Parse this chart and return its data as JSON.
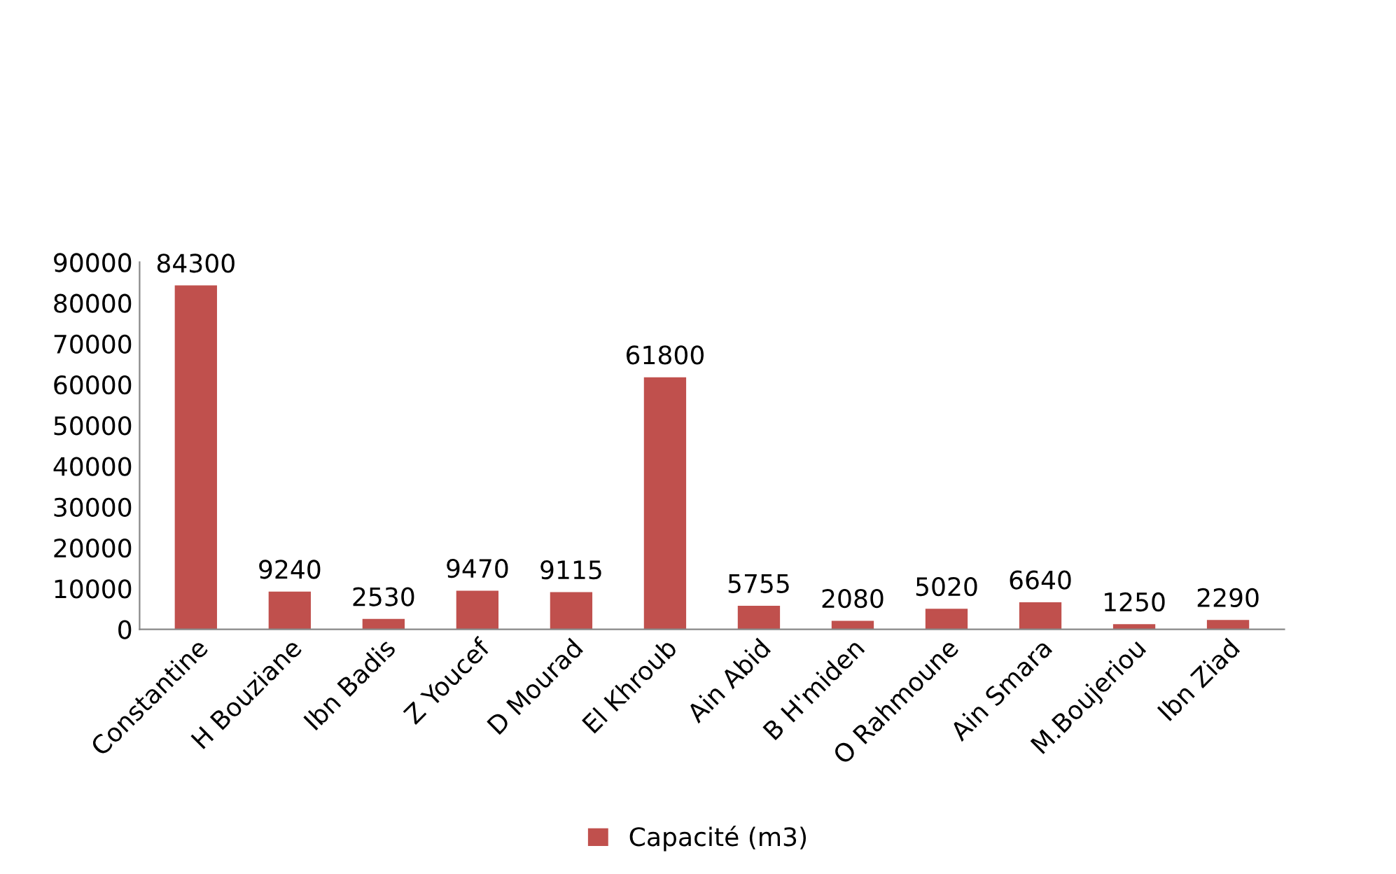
{
  "chart_data": {
    "type": "bar",
    "categories": [
      "Constantine",
      "H Bouziane",
      "Ibn Badis",
      "Z Youcef",
      "D Mourad",
      "El Khroub",
      "Ain Abid",
      "B H'miden",
      "O Rahmoune",
      "Ain Smara",
      "M.Boujeriou",
      "Ibn Ziad"
    ],
    "series": [
      {
        "name": "Capacité (m3)",
        "color": "#c0504d",
        "values": [
          84300,
          9240,
          2530,
          9470,
          9115,
          61800,
          5755,
          2080,
          5020,
          6640,
          1250,
          2290
        ]
      }
    ],
    "ylim": [
      0,
      90000
    ],
    "yticks": [
      0,
      10000,
      20000,
      30000,
      40000,
      50000,
      60000,
      70000,
      80000,
      90000
    ],
    "data_labels": true,
    "grid": false,
    "legend": "bottom"
  }
}
